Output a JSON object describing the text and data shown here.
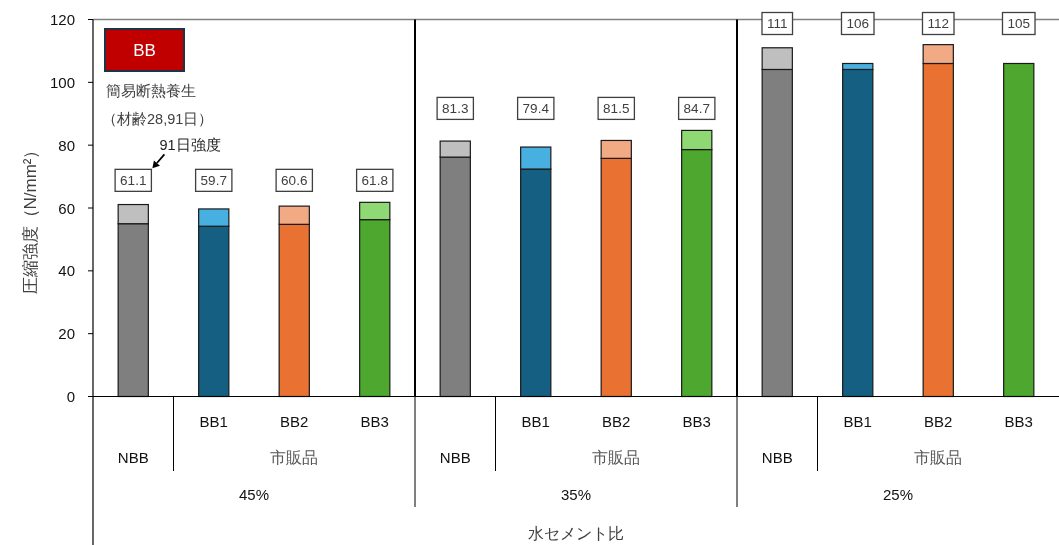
{
  "chart_data": {
    "type": "bar",
    "stacked": true,
    "title": "BB",
    "ylabel": "圧縮強度（N/mm²）",
    "categories": [
      null,
      "BB1",
      "BB2",
      "BB3",
      null,
      "BB1",
      "BB2",
      "BB3",
      null,
      "BB1",
      "BB2",
      "BB3"
    ],
    "series": [
      {
        "colors": [
          "#7f7f7f",
          "#156082",
          "#e97132",
          "#4ea72e",
          "#7f7f7f",
          "#156082",
          "#e97132",
          "#4ea72e",
          "#7f7f7f",
          "#156082",
          "#e97132",
          "#4ea72e"
        ],
        "values": [
          55.0,
          54.2,
          54.8,
          56.3,
          76.2,
          72.4,
          75.8,
          78.6,
          104.1,
          104.1,
          106.0,
          106
        ]
      },
      {
        "colors": [
          "#bfbfbf",
          "#47b0e0",
          "#f2aa84",
          "#8ed973",
          "#bfbfbf",
          "#47b0e0",
          "#f2aa84",
          "#8ed973",
          "#bfbfbf",
          "#47b0e0",
          "#f2aa84",
          null
        ],
        "values": [
          6.1,
          5.5,
          5.8,
          5.5,
          5.1,
          7.0,
          5.7,
          6.1,
          6.9,
          1.9,
          6.0,
          null
        ]
      }
    ],
    "totals": [
      "61.1",
      "59.7",
      "60.6",
      "61.8",
      "81.3",
      "79.4",
      "81.5",
      "84.7",
      "111",
      "106",
      "112",
      "105"
    ],
    "ylim": [
      0,
      120
    ],
    "yticks": [
      0,
      20,
      40,
      60,
      80,
      100,
      120
    ],
    "annotations": [
      "簡易断熱養生",
      "（材齢28,91日）",
      "91日強度",
      "NBB",
      "市販品",
      "45%",
      "NBB",
      "市販品",
      "35%",
      "NBB",
      "市販品",
      "25%",
      "水セメント比"
    ]
  }
}
